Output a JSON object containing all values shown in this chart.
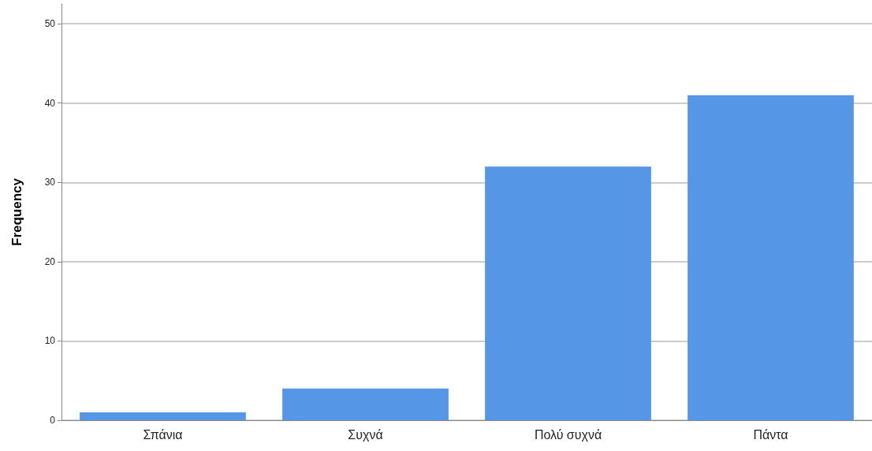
{
  "chart_data": {
    "type": "bar",
    "ylabel": "Frequency",
    "categories": [
      "Σπάνια",
      "Συχνά",
      "Πολύ συχνά",
      "Πάντα"
    ],
    "values": [
      1,
      4,
      32,
      41
    ],
    "color": "#5596e6",
    "ylim": [
      0,
      52.5
    ],
    "yticks": [
      0,
      10,
      20,
      30,
      40,
      50
    ],
    "grid": "y"
  }
}
